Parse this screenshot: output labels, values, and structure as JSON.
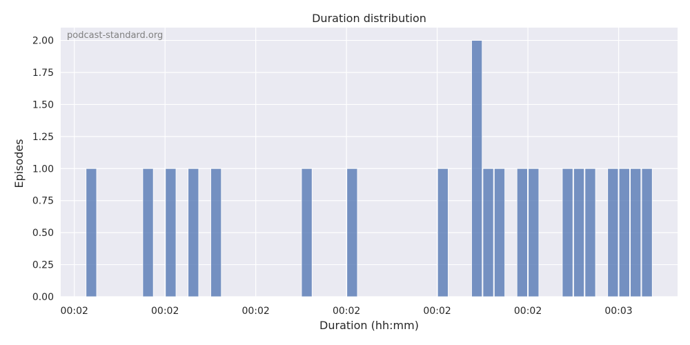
{
  "chart_data": {
    "type": "bar",
    "title": "Duration distribution",
    "xlabel": "Duration (hh:mm)",
    "ylabel": "Episodes",
    "watermark": "podcast-standard.org",
    "ylim": [
      0,
      2.1
    ],
    "yticks": [
      0.0,
      0.25,
      0.5,
      0.75,
      1.0,
      1.25,
      1.5,
      1.75,
      2.0
    ],
    "ytick_labels": [
      "0.00",
      "0.25",
      "0.50",
      "0.75",
      "1.00",
      "1.25",
      "1.50",
      "1.75",
      "2.00"
    ],
    "xlim": [
      -1.2,
      53.2
    ],
    "xticks": [
      0,
      8,
      16,
      24,
      32,
      40,
      48
    ],
    "xtick_labels": [
      "00:02",
      "00:02",
      "00:02",
      "00:02",
      "00:02",
      "00:02",
      "00:03"
    ],
    "bin_count": 51,
    "bins": [
      1,
      6,
      8,
      10,
      12,
      20,
      24,
      32,
      35,
      36,
      37,
      39,
      40,
      43,
      44,
      45,
      47,
      48,
      49,
      50
    ],
    "values": [
      1,
      1,
      1,
      1,
      1,
      1,
      1,
      1,
      2,
      1,
      1,
      1,
      1,
      1,
      1,
      1,
      1,
      1,
      1,
      1
    ],
    "grid": true,
    "colors": {
      "bar": "#4c72b0",
      "background": "#eaeaf2",
      "grid": "#ffffff"
    }
  }
}
